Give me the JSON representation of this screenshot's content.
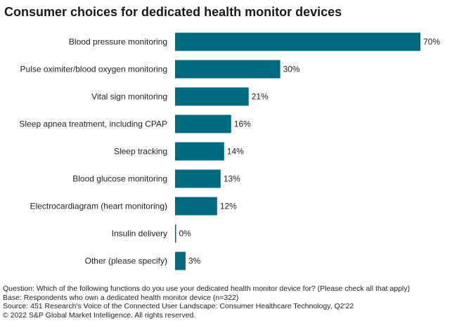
{
  "chart_data": {
    "type": "bar",
    "orientation": "horizontal",
    "title": "Consumer choices for dedicated health monitor devices",
    "categories": [
      "Blood pressure monitoring",
      "Pulse oximiter/blood oxygen monitoring",
      "Vital sign monitoring",
      "Sleep apnea treatment, including CPAP",
      "Sleep tracking",
      "Blood glucose monitoring",
      "Electrocardiagram (heart monitoring)",
      "Insulin delivery",
      "Other (please specify)"
    ],
    "values": [
      70,
      30,
      21,
      16,
      14,
      13,
      12,
      0,
      3
    ],
    "value_labels": [
      "70%",
      "30%",
      "21%",
      "16%",
      "14%",
      "13%",
      "12%",
      "0%",
      "3%"
    ],
    "unit": "%",
    "xlim": [
      0,
      70
    ],
    "xlabel": "",
    "ylabel": "",
    "grid": false,
    "legend": "none",
    "bar_color": "#006a80"
  },
  "notes": {
    "question": "Question: Which of the following functions do you use your dedicated health monitor device for? (Please check all that apply)",
    "base": "Base: Respondents who own a dedicated health monitor device (n=322)",
    "source": "Source: 451 Research's Voice of the Connected User Landscape: Consumer Healthcare Technology, Q2'22",
    "copyright": "© 2022 S&P Global Market Intelligence. All rights reserved."
  }
}
